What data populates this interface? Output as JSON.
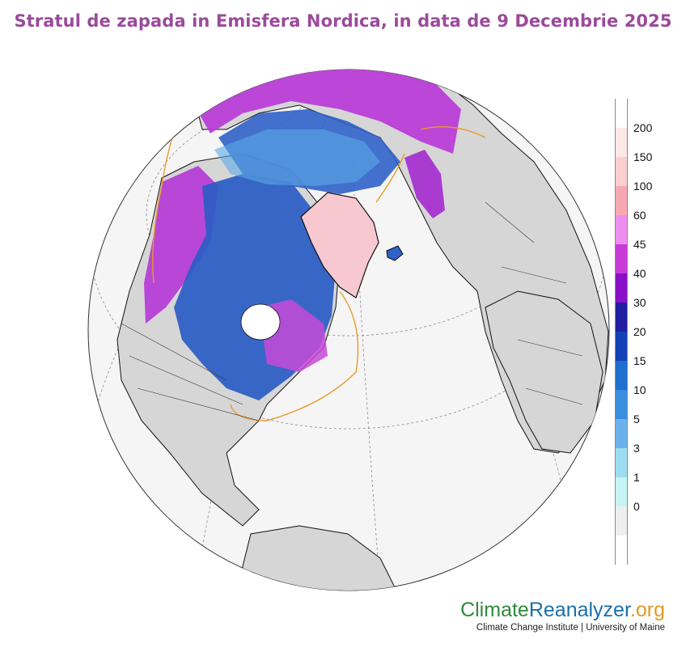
{
  "title": "Stratul de zapada in Emisfera Nordica, in data de 9 Decembrie 2025",
  "legend": {
    "labels": [
      "200",
      "150",
      "100",
      "60",
      "45",
      "40",
      "30",
      "20",
      "15",
      "10",
      "5",
      "3",
      "1",
      "0"
    ],
    "colors": [
      "#ffffff",
      "#fde8e8",
      "#fbcfcf",
      "#f6a9b2",
      "#ee8ef0",
      "#c83ad8",
      "#8a10c8",
      "#1f1fa0",
      "#1440b8",
      "#1f6fd0",
      "#3a8ee0",
      "#6bb2ec",
      "#9cdcf0",
      "#c6f4f4",
      "#eeeeee",
      "#ffffff"
    ]
  },
  "map_colors": {
    "ocean": "#f5f5f5",
    "land": "#d6d6d6",
    "coast": "#111111",
    "ice_edge": "#e89a28",
    "greenland": "#f8c8d0"
  },
  "credit": {
    "brand_part1": "Climate",
    "brand_part2": "Reanalyzer",
    "brand_part3": ".org",
    "subtitle": "Climate Change Institute | University of Maine"
  }
}
